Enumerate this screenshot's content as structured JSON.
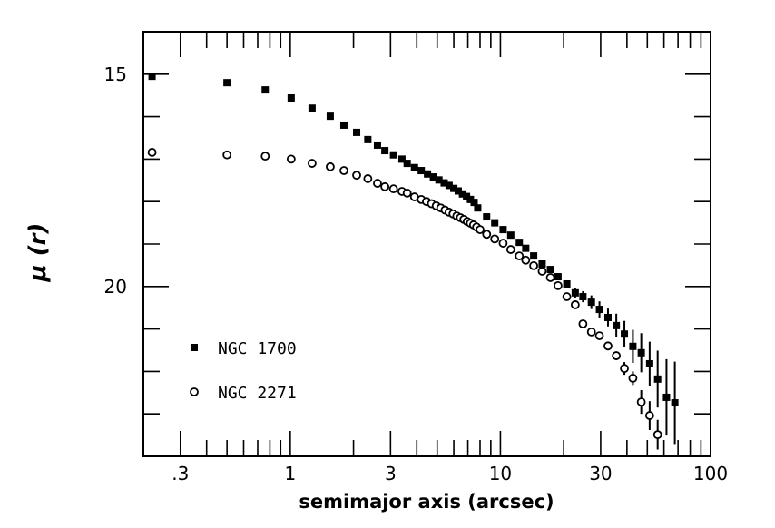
{
  "chart_data": {
    "type": "scatter",
    "title": "",
    "xlabel": "semimajor axis (arcsec)",
    "ylabel": "μ (r)",
    "xscale": "log",
    "xlim": [
      0.2,
      100
    ],
    "ylim": [
      24,
      14
    ],
    "x_tick_labels": [
      {
        "value": 0.3,
        "label": ".3"
      },
      {
        "value": 1,
        "label": "1"
      },
      {
        "value": 3,
        "label": "3"
      },
      {
        "value": 10,
        "label": "10"
      },
      {
        "value": 30,
        "label": "30"
      },
      {
        "value": 100,
        "label": "100"
      }
    ],
    "y_tick_labels": [
      {
        "value": 15,
        "label": "15"
      },
      {
        "value": 20,
        "label": "20"
      }
    ],
    "grid": false,
    "legend_position": "bottom-left",
    "series": [
      {
        "name": "NGC 1700",
        "marker": "filled-square",
        "x": [
          0.22,
          0.5,
          0.76,
          1.01,
          1.27,
          1.55,
          1.8,
          2.07,
          2.34,
          2.6,
          2.82,
          3.1,
          3.4,
          3.6,
          3.9,
          4.2,
          4.5,
          4.8,
          5.1,
          5.4,
          5.7,
          6.0,
          6.3,
          6.6,
          6.9,
          7.2,
          7.5,
          7.8,
          8.6,
          9.4,
          10.3,
          11.2,
          12.3,
          13.2,
          14.4,
          15.8,
          17.3,
          18.8,
          20.7,
          22.7,
          24.7,
          27.1,
          29.6,
          32.5,
          35.6,
          38.9,
          42.7,
          46.8,
          51.3,
          56,
          61.7,
          67.6
        ],
        "y": [
          15.05,
          15.2,
          15.37,
          15.56,
          15.8,
          15.99,
          16.2,
          16.37,
          16.54,
          16.67,
          16.8,
          16.9,
          17.0,
          17.1,
          17.2,
          17.27,
          17.35,
          17.42,
          17.49,
          17.56,
          17.62,
          17.69,
          17.75,
          17.82,
          17.88,
          17.95,
          18.02,
          18.15,
          18.36,
          18.5,
          18.66,
          18.79,
          18.96,
          19.1,
          19.28,
          19.47,
          19.6,
          19.77,
          19.94,
          20.15,
          20.24,
          20.37,
          20.54,
          20.73,
          20.92,
          21.12,
          21.41,
          21.56,
          21.82,
          22.18,
          22.61,
          22.74
        ],
        "yerr": [
          0,
          0,
          0,
          0,
          0,
          0,
          0,
          0,
          0,
          0,
          0,
          0,
          0,
          0,
          0,
          0,
          0,
          0,
          0,
          0,
          0,
          0,
          0,
          0,
          0,
          0,
          0,
          0,
          0,
          0,
          0,
          0,
          0,
          0,
          0.03,
          0.04,
          0.05,
          0.06,
          0.08,
          0.12,
          0.13,
          0.16,
          0.19,
          0.21,
          0.28,
          0.31,
          0.39,
          0.46,
          0.52,
          0.67,
          0.9,
          0.97
        ]
      },
      {
        "name": "NGC 2271",
        "marker": "open-circle",
        "x": [
          0.22,
          0.5,
          0.76,
          1.01,
          1.27,
          1.55,
          1.8,
          2.07,
          2.34,
          2.6,
          2.82,
          3.1,
          3.4,
          3.6,
          3.9,
          4.2,
          4.45,
          4.7,
          4.95,
          5.2,
          5.45,
          5.7,
          5.95,
          6.2,
          6.45,
          6.7,
          6.95,
          7.2,
          7.45,
          7.7,
          8.0,
          8.6,
          9.4,
          10.3,
          11.2,
          12.3,
          13.2,
          14.4,
          15.8,
          17.3,
          18.8,
          20.7,
          22.7,
          24.7,
          27.1,
          29.6,
          32.5,
          35.6,
          38.9,
          42.7,
          46.8,
          51.3,
          56
        ],
        "y": [
          16.84,
          16.9,
          16.93,
          17.0,
          17.1,
          17.18,
          17.27,
          17.38,
          17.46,
          17.57,
          17.65,
          17.7,
          17.76,
          17.8,
          17.89,
          17.95,
          18.0,
          18.05,
          18.1,
          18.15,
          18.2,
          18.25,
          18.29,
          18.34,
          18.38,
          18.42,
          18.47,
          18.51,
          18.55,
          18.6,
          18.66,
          18.77,
          18.88,
          18.98,
          19.13,
          19.28,
          19.38,
          19.51,
          19.64,
          19.79,
          19.98,
          20.24,
          20.43,
          20.88,
          21.07,
          21.16,
          21.4,
          21.63,
          21.93,
          22.16,
          22.72,
          23.04,
          23.49
        ],
        "yerr": [
          0,
          0,
          0,
          0,
          0,
          0,
          0,
          0,
          0,
          0,
          0,
          0,
          0,
          0,
          0,
          0,
          0,
          0,
          0,
          0,
          0,
          0,
          0,
          0,
          0,
          0,
          0,
          0,
          0,
          0,
          0,
          0,
          0,
          0,
          0,
          0,
          0,
          0,
          0,
          0,
          0.03,
          0.04,
          0.05,
          0.06,
          0.07,
          0.08,
          0.09,
          0.1,
          0.15,
          0.16,
          0.28,
          0.34,
          0.35
        ]
      }
    ]
  }
}
